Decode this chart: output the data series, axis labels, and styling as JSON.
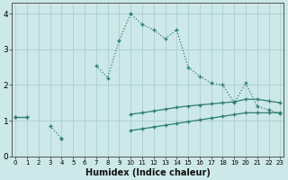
{
  "xlabel": "Humidex (Indice chaleur)",
  "x": [
    0,
    1,
    2,
    3,
    4,
    5,
    6,
    7,
    8,
    9,
    10,
    11,
    12,
    13,
    14,
    15,
    16,
    17,
    18,
    19,
    20,
    21,
    22,
    23
  ],
  "line1_y": [
    1.1,
    1.1,
    null,
    0.85,
    0.5,
    null,
    null,
    2.55,
    2.2,
    3.25,
    4.0,
    3.7,
    3.55,
    3.3,
    3.55,
    2.5,
    2.25,
    2.05,
    2.0,
    1.5,
    2.05,
    1.4,
    1.3,
    1.2
  ],
  "line2_y": [
    1.1,
    1.1,
    null,
    null,
    null,
    null,
    null,
    null,
    null,
    null,
    1.18,
    1.22,
    1.27,
    1.32,
    1.37,
    1.41,
    1.44,
    1.47,
    1.5,
    1.53,
    1.6,
    1.6,
    1.55,
    1.5
  ],
  "line3_y": [
    null,
    null,
    null,
    null,
    0.5,
    null,
    null,
    null,
    null,
    null,
    0.72,
    0.77,
    0.82,
    0.87,
    0.92,
    0.97,
    1.02,
    1.07,
    1.12,
    1.17,
    1.22,
    1.22,
    1.22,
    1.22
  ],
  "color": "#2e7d6e",
  "bg_color": "#cce8e8",
  "grid_color": "#aacfcf",
  "ylim": [
    0,
    4.3
  ],
  "xlim": [
    -0.3,
    23.3
  ],
  "yticks": [
    0,
    1,
    2,
    3,
    4
  ],
  "xticks": [
    0,
    1,
    2,
    3,
    4,
    5,
    6,
    7,
    8,
    9,
    10,
    11,
    12,
    13,
    14,
    15,
    16,
    17,
    18,
    19,
    20,
    21,
    22,
    23
  ]
}
